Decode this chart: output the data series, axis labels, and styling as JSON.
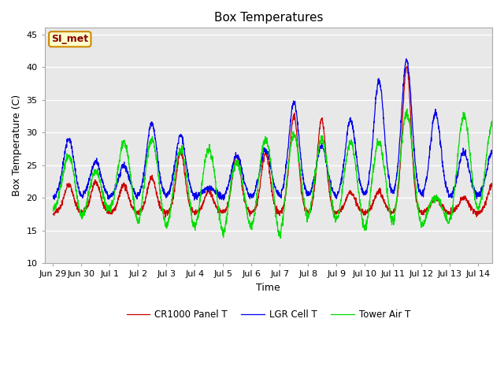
{
  "title": "Box Temperatures",
  "ylabel": "Box Temperature (C)",
  "xlabel": "Time",
  "ylim": [
    10,
    46
  ],
  "yticks": [
    10,
    15,
    20,
    25,
    30,
    35,
    40,
    45
  ],
  "background_color": "#ffffff",
  "plot_bg_color": "#e8e8e8",
  "grid_color": "#ffffff",
  "line_colors": {
    "panel": "#cc0000",
    "cell": "#0000ee",
    "tower": "#00dd00"
  },
  "legend_labels": [
    "CR1000 Panel T",
    "LGR Cell T",
    "Tower Air T"
  ],
  "annotation_text": "SI_met",
  "annotation_bg": "#ffffcc",
  "annotation_border": "#cc8800",
  "title_fontsize": 11,
  "axis_fontsize": 9,
  "tick_fontsize": 8,
  "n_days": 16,
  "points_per_day": 144,
  "xtick_labels": [
    "Jun 29",
    "Jun 30",
    "Jul 1",
    "Jul 2",
    "Jul 3",
    "Jul 4",
    "Jul 5",
    "Jul 6",
    "Jul 7",
    "Jul 8",
    "Jul 9",
    "Jul 10",
    "Jul 11",
    "Jul 12",
    "Jul 13",
    "Jul 14"
  ],
  "xtick_positions": [
    0,
    1,
    2,
    3,
    4,
    5,
    6,
    7,
    8,
    9,
    10,
    11,
    12,
    13,
    14,
    15
  ]
}
